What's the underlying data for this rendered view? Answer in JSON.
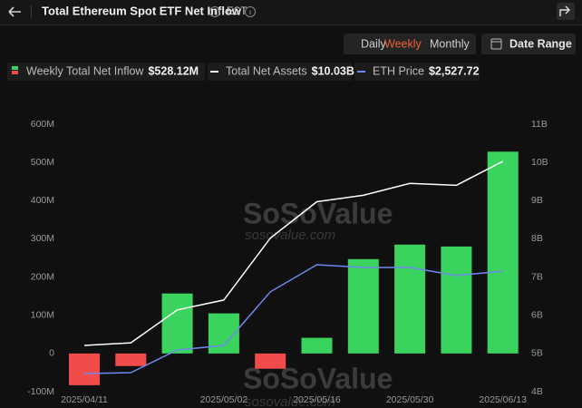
{
  "chart_data": {
    "type": "bar",
    "title": "Total Ethereum Spot ETF Net Inflow",
    "timezone": "EST",
    "periods": [
      "Daily",
      "Weekly",
      "Monthly"
    ],
    "active_period": "Weekly",
    "date_range": "Date Range",
    "watermark": "SoSoValue",
    "watermark_url": "sosovalue.com",
    "categories": [
      "2025/04/11",
      null,
      null,
      "2025/05/02",
      null,
      "2025/05/16",
      null,
      "2025/05/30",
      null,
      "2025/06/13"
    ],
    "ylim": [
      -100,
      600
    ],
    "yticks": [
      {
        "value": -100,
        "label": "-100M"
      },
      0,
      {
        "value": 100,
        "label": "100M"
      },
      {
        "value": 200,
        "label": "200M"
      },
      {
        "value": 300,
        "label": "300M"
      },
      {
        "value": 400,
        "label": "400M"
      },
      {
        "value": 500,
        "label": "500M"
      },
      {
        "value": 600,
        "label": "600M"
      }
    ],
    "y2lim": [
      4,
      11
    ],
    "y2ticks": [
      {
        "value": 4,
        "label": "4B"
      },
      {
        "value": 5,
        "label": "5B"
      },
      {
        "value": 6,
        "label": "6B"
      },
      {
        "value": 7,
        "label": "7B"
      },
      {
        "value": 8,
        "label": "8B"
      },
      {
        "value": 9,
        "label": "9B"
      },
      {
        "value": 10,
        "label": "10B"
      },
      {
        "value": 11,
        "label": "11B"
      }
    ],
    "series": [
      {
        "name": "Weekly Total Net Inflow",
        "legend_label": "$528.12M",
        "type": "bar",
        "color": "#3ad35e",
        "negative_color": "#f24b4b",
        "values": [
          -83,
          -33,
          157,
          105,
          -40,
          41,
          247,
          285,
          280,
          528.12
        ]
      },
      {
        "name": "Total Net Assets",
        "legend_label": "$10.03B",
        "type": "line",
        "axis": "y2",
        "color": "#ffffff",
        "values": [
          5.21,
          5.28,
          6.14,
          6.4,
          8.02,
          8.97,
          9.14,
          9.45,
          9.4,
          10.03
        ]
      },
      {
        "name": "ETH Price",
        "legend_label": "$2,527.72",
        "type": "line",
        "axis": "hidden",
        "color": "#7088ee",
        "values": [
          1580,
          1588,
          1798,
          1840,
          2335,
          2586,
          2561,
          2561,
          2486,
          2527.72
        ]
      }
    ]
  }
}
